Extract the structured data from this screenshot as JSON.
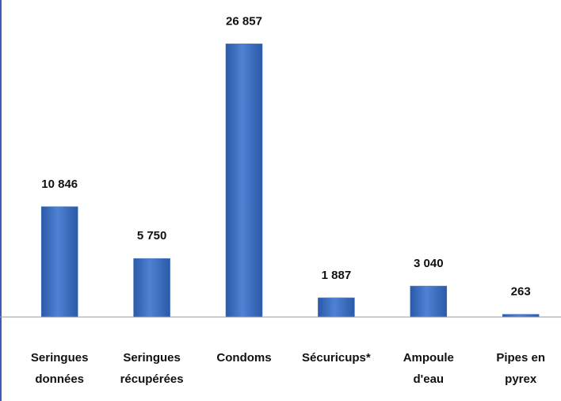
{
  "chart_data": {
    "type": "bar",
    "categories": [
      "Seringues\ndonnées",
      "Seringues\nrécupérées",
      "Condoms",
      "Sécuricups*",
      "Ampoule\nd'eau",
      "Pipes en\npyrex"
    ],
    "values": [
      10846,
      5750,
      26857,
      1887,
      3040,
      263
    ],
    "value_labels": [
      "10 846",
      "5 750",
      "26 857",
      "1 887",
      "3 040",
      "263"
    ],
    "color": "#3a6cc0",
    "ylim": [
      0,
      30000
    ]
  }
}
